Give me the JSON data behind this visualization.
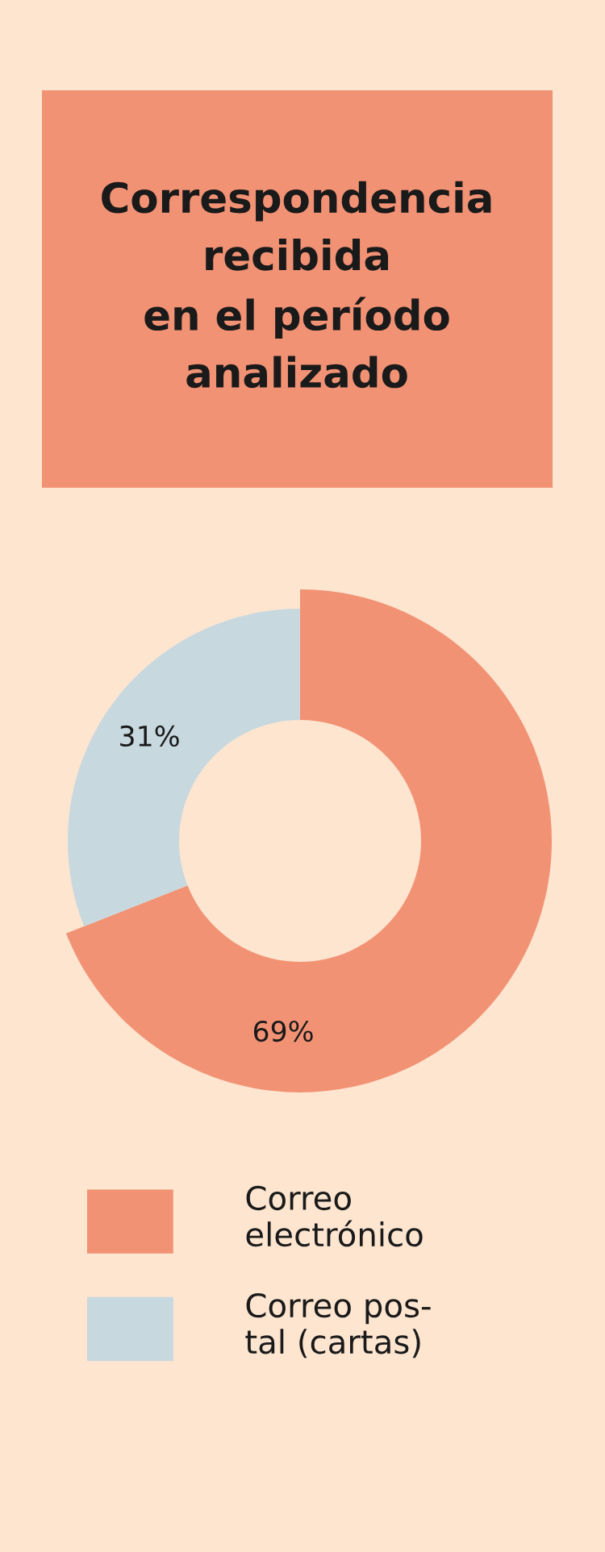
{
  "chart_data": {
    "type": "donut",
    "title": "Correspondencia\nrecibida\nen el período\nanalizado",
    "categories": [
      "Correo\nelectrónico",
      "Correo pos-\ntal (cartas)"
    ],
    "values": [
      69,
      31
    ],
    "colors": [
      "#f29274",
      "#c8d8df"
    ],
    "value_labels": [
      "69%",
      "31%"
    ],
    "legend": "bottom"
  }
}
